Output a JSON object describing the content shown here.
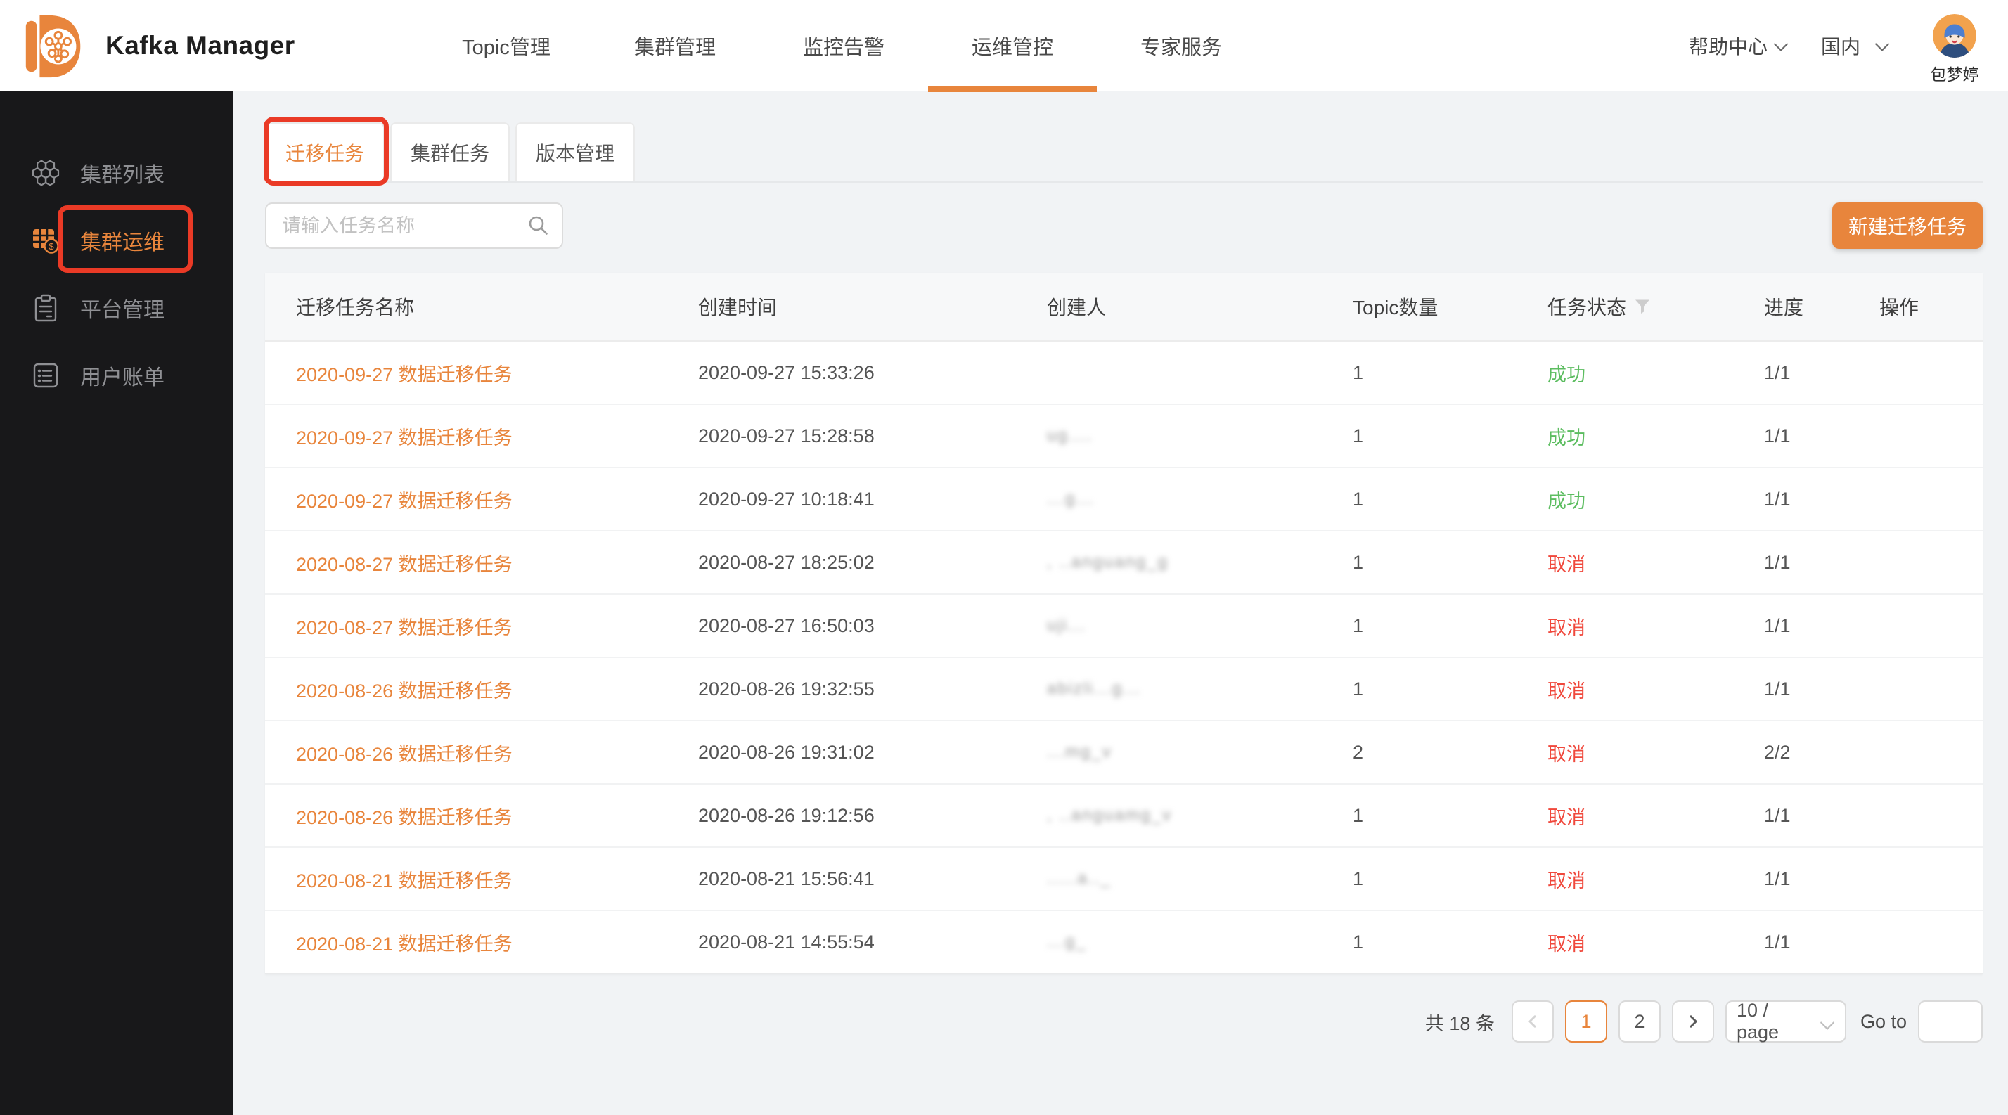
{
  "header": {
    "brand": "Kafka Manager",
    "nav": [
      {
        "label": "Topic管理",
        "active": false
      },
      {
        "label": "集群管理",
        "active": false
      },
      {
        "label": "监控告警",
        "active": false
      },
      {
        "label": "运维管控",
        "active": true
      },
      {
        "label": "专家服务",
        "active": false
      }
    ],
    "help_label": "帮助中心",
    "region_label": "国内",
    "user_name": "包梦婷"
  },
  "sidebar": {
    "items": [
      {
        "label": "集群列表",
        "icon": "cluster-hex-icon",
        "active": false,
        "annotated": false
      },
      {
        "label": "集群运维",
        "icon": "ops-billing-icon",
        "active": true,
        "annotated": true
      },
      {
        "label": "平台管理",
        "icon": "clipboard-icon",
        "active": false,
        "annotated": false
      },
      {
        "label": "用户账单",
        "icon": "bill-list-icon",
        "active": false,
        "annotated": false
      }
    ]
  },
  "tabs": [
    {
      "label": "迁移任务",
      "active": true,
      "annotated": true
    },
    {
      "label": "集群任务",
      "active": false,
      "annotated": false
    },
    {
      "label": "版本管理",
      "active": false,
      "annotated": false
    }
  ],
  "toolbar": {
    "search_placeholder": "请输入任务名称",
    "create_button_label": "新建迁移任务"
  },
  "table": {
    "columns": [
      "迁移任务名称",
      "创建时间",
      "创建人",
      "Topic数量",
      "任务状态",
      "进度",
      "操作"
    ],
    "filter_column": "任务状态",
    "rows": [
      {
        "name": "2020-09-27 数据迁移任务",
        "created": "2020-09-27 15:33:26",
        "creator_blurred": "",
        "topics": "1",
        "status": "成功",
        "status_type": "success",
        "progress": "1/1"
      },
      {
        "name": "2020-09-27 数据迁移任务",
        "created": "2020-09-27 15:28:58",
        "creator_blurred": "ug....",
        "topics": "1",
        "status": "成功",
        "status_type": "success",
        "progress": "1/1"
      },
      {
        "name": "2020-09-27 数据迁移任务",
        "created": "2020-09-27 10:18:41",
        "creator_blurred": "...g...",
        "topics": "1",
        "status": "成功",
        "status_type": "success",
        "progress": "1/1"
      },
      {
        "name": "2020-08-27 数据迁移任务",
        "created": "2020-08-27 18:25:02",
        "creator_blurred": ", ..anguang_g",
        "topics": "1",
        "status": "取消",
        "status_type": "cancel",
        "progress": "1/1"
      },
      {
        "name": "2020-08-27 数据迁移任务",
        "created": "2020-08-27 16:50:03",
        "creator_blurred": "uji...",
        "topics": "1",
        "status": "取消",
        "status_type": "cancel",
        "progress": "1/1"
      },
      {
        "name": "2020-08-26 数据迁移任务",
        "created": "2020-08-26 19:32:55",
        "creator_blurred": "abizli...g...",
        "topics": "1",
        "status": "取消",
        "status_type": "cancel",
        "progress": "1/1"
      },
      {
        "name": "2020-08-26 数据迁移任务",
        "created": "2020-08-26 19:31:02",
        "creator_blurred": "...mg_v",
        "topics": "2",
        "status": "取消",
        "status_type": "cancel",
        "progress": "2/2"
      },
      {
        "name": "2020-08-26 数据迁移任务",
        "created": "2020-08-26 19:12:56",
        "creator_blurred": ", ..anguamg_v",
        "topics": "1",
        "status": "取消",
        "status_type": "cancel",
        "progress": "1/1"
      },
      {
        "name": "2020-08-21 数据迁移任务",
        "created": "2020-08-21 15:56:41",
        "creator_blurred": ".....a.._",
        "topics": "1",
        "status": "取消",
        "status_type": "cancel",
        "progress": "1/1"
      },
      {
        "name": "2020-08-21 数据迁移任务",
        "created": "2020-08-21 14:55:54",
        "creator_blurred": "...g_",
        "topics": "1",
        "status": "取消",
        "status_type": "cancel",
        "progress": "1/1"
      }
    ]
  },
  "pagination": {
    "total_label": "共 18 条",
    "pages": [
      {
        "label": "1",
        "active": true
      },
      {
        "label": "2",
        "active": false
      }
    ],
    "prev_disabled": true,
    "page_size_label": "10 / page",
    "goto_label": "Go to",
    "goto_value": ""
  },
  "colors": {
    "accent": "#E8853C",
    "annotation_red": "#EA3A26",
    "success_green": "#5CBD60",
    "cancel_red": "#F0483C",
    "sidebar_bg": "#18181A",
    "content_bg": "#F1F3F5",
    "header_bg": "#FFFFFF"
  }
}
